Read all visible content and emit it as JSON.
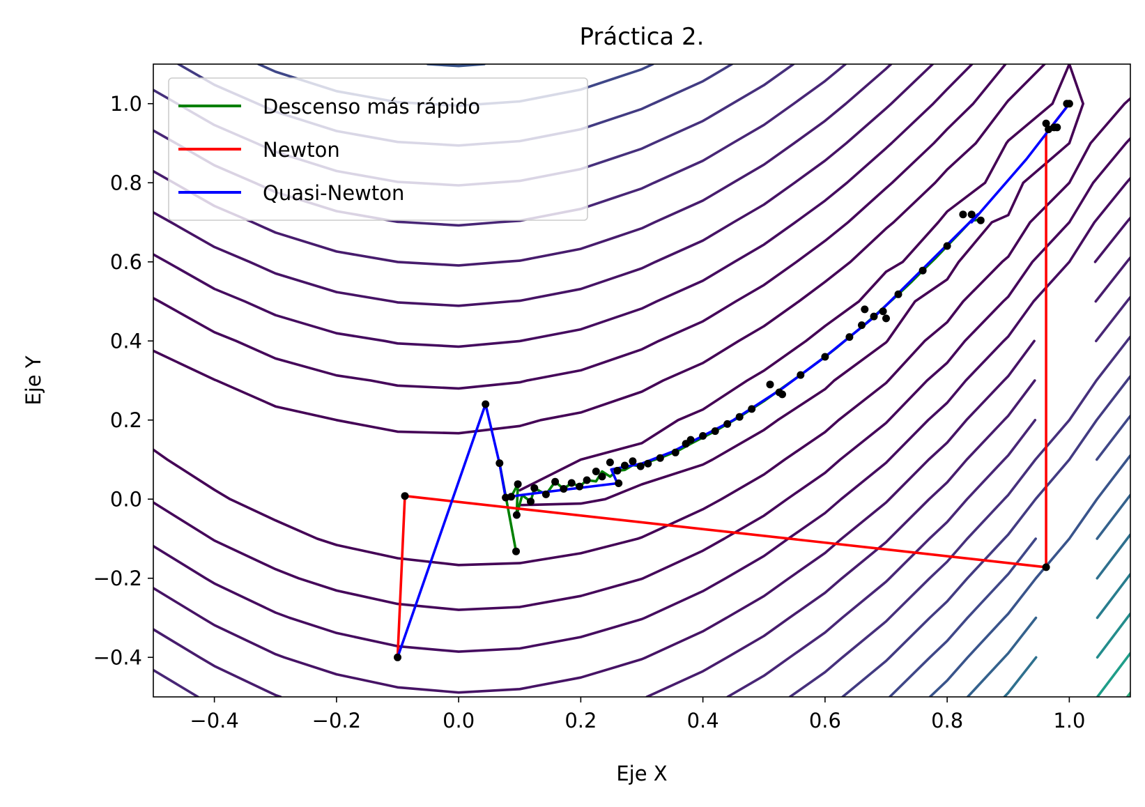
{
  "chart_data": {
    "type": "line",
    "title": "Práctica 2.",
    "xlabel": "Eje X",
    "ylabel": "Eje Y",
    "xlim": [
      -0.5,
      1.1
    ],
    "ylim": [
      -0.5,
      1.1
    ],
    "xticks": [
      -0.4,
      -0.2,
      0.0,
      0.2,
      0.4,
      0.6,
      0.8,
      1.0
    ],
    "xtick_labels": [
      "−0.4",
      "−0.2",
      "0.0",
      "0.2",
      "0.4",
      "0.6",
      "0.8",
      "1.0"
    ],
    "yticks": [
      -0.4,
      -0.2,
      0.0,
      0.2,
      0.4,
      0.6,
      0.8,
      1.0
    ],
    "ytick_labels": [
      "−0.4",
      "−0.2",
      "0.0",
      "0.2",
      "0.4",
      "0.6",
      "0.8",
      "1.0"
    ],
    "grid": false,
    "legend_position": "top-left",
    "contour": {
      "function": "rosenbrock",
      "levels": [
        1,
        4,
        9,
        16,
        25,
        36,
        49,
        64,
        81,
        100,
        121,
        144,
        169,
        196,
        225,
        256,
        289
      ],
      "colormap": "viridis"
    },
    "series": [
      {
        "name": "Descenso más rápido",
        "color": "#008000",
        "x": [
          0.094,
          0.067,
          0.077,
          0.086,
          0.097,
          0.095,
          0.104,
          0.118,
          0.124,
          0.143,
          0.158,
          0.172,
          0.185,
          0.198,
          0.21,
          0.225,
          0.235,
          0.248,
          0.26,
          0.272,
          0.285,
          0.298,
          0.31,
          0.33,
          0.36,
          0.38,
          0.4,
          0.42,
          0.44,
          0.46,
          0.48,
          0.5,
          0.52,
          0.54,
          0.56,
          0.58,
          0.6,
          0.62,
          0.64,
          0.66,
          0.68,
          0.7,
          0.72,
          0.74,
          0.76,
          0.78,
          0.8,
          0.82,
          0.84,
          0.855
        ],
        "y": [
          -0.132,
          0.091,
          0.004,
          0.006,
          0.038,
          -0.04,
          0.01,
          -0.006,
          0.028,
          0.012,
          0.044,
          0.026,
          0.041,
          0.032,
          0.048,
          0.045,
          0.07,
          0.057,
          0.072,
          0.074,
          0.086,
          0.083,
          0.094,
          0.104,
          0.123,
          0.14,
          0.156,
          0.172,
          0.19,
          0.208,
          0.228,
          0.248,
          0.27,
          0.292,
          0.314,
          0.337,
          0.36,
          0.384,
          0.41,
          0.435,
          0.462,
          0.49,
          0.518,
          0.547,
          0.578,
          0.608,
          0.64,
          0.672,
          0.705,
          0.706
        ]
      },
      {
        "name": "Newton",
        "color": "#ff0000",
        "x": [
          -0.1,
          -0.088,
          0.962,
          0.962,
          1.0
        ],
        "y": [
          -0.4,
          0.008,
          -0.172,
          0.925,
          1.0
        ]
      },
      {
        "name": "Quasi-Newton",
        "color": "#0000ff",
        "x": [
          -0.1,
          0.044,
          0.067,
          0.077,
          0.1,
          0.26,
          0.25,
          0.3,
          0.35,
          0.4,
          0.45,
          0.5,
          0.53,
          0.6,
          0.68,
          0.7,
          0.85,
          0.84,
          0.93,
          0.98,
          1.0
        ],
        "y": [
          -0.4,
          0.24,
          0.09,
          0.004,
          0.01,
          0.04,
          0.075,
          0.09,
          0.12,
          0.16,
          0.2,
          0.25,
          0.28,
          0.36,
          0.46,
          0.49,
          0.72,
          0.7,
          0.86,
          0.96,
          1.0
        ]
      }
    ],
    "markers": {
      "color": "#000000",
      "x": [
        -0.1,
        -0.088,
        0.044,
        0.067,
        0.077,
        0.086,
        0.094,
        0.097,
        0.095,
        0.118,
        0.124,
        0.143,
        0.158,
        0.172,
        0.185,
        0.198,
        0.21,
        0.225,
        0.235,
        0.248,
        0.26,
        0.262,
        0.272,
        0.285,
        0.298,
        0.31,
        0.33,
        0.355,
        0.372,
        0.38,
        0.4,
        0.42,
        0.44,
        0.46,
        0.48,
        0.51,
        0.525,
        0.53,
        0.56,
        0.6,
        0.64,
        0.66,
        0.665,
        0.68,
        0.695,
        0.7,
        0.72,
        0.76,
        0.8,
        0.826,
        0.84,
        0.855,
        0.962,
        0.962,
        0.966,
        0.975,
        0.98,
        0.996,
        1.0
      ],
      "y": [
        -0.4,
        0.008,
        0.24,
        0.091,
        0.004,
        0.006,
        -0.132,
        0.038,
        -0.04,
        -0.006,
        0.028,
        0.012,
        0.044,
        0.026,
        0.041,
        0.032,
        0.048,
        0.07,
        0.057,
        0.093,
        0.072,
        0.04,
        0.085,
        0.096,
        0.083,
        0.09,
        0.104,
        0.118,
        0.14,
        0.15,
        0.16,
        0.172,
        0.19,
        0.208,
        0.228,
        0.29,
        0.27,
        0.265,
        0.314,
        0.36,
        0.41,
        0.44,
        0.48,
        0.462,
        0.475,
        0.457,
        0.518,
        0.578,
        0.64,
        0.72,
        0.72,
        0.705,
        0.95,
        -0.172,
        0.935,
        0.94,
        0.94,
        1.0,
        1.0
      ]
    }
  }
}
